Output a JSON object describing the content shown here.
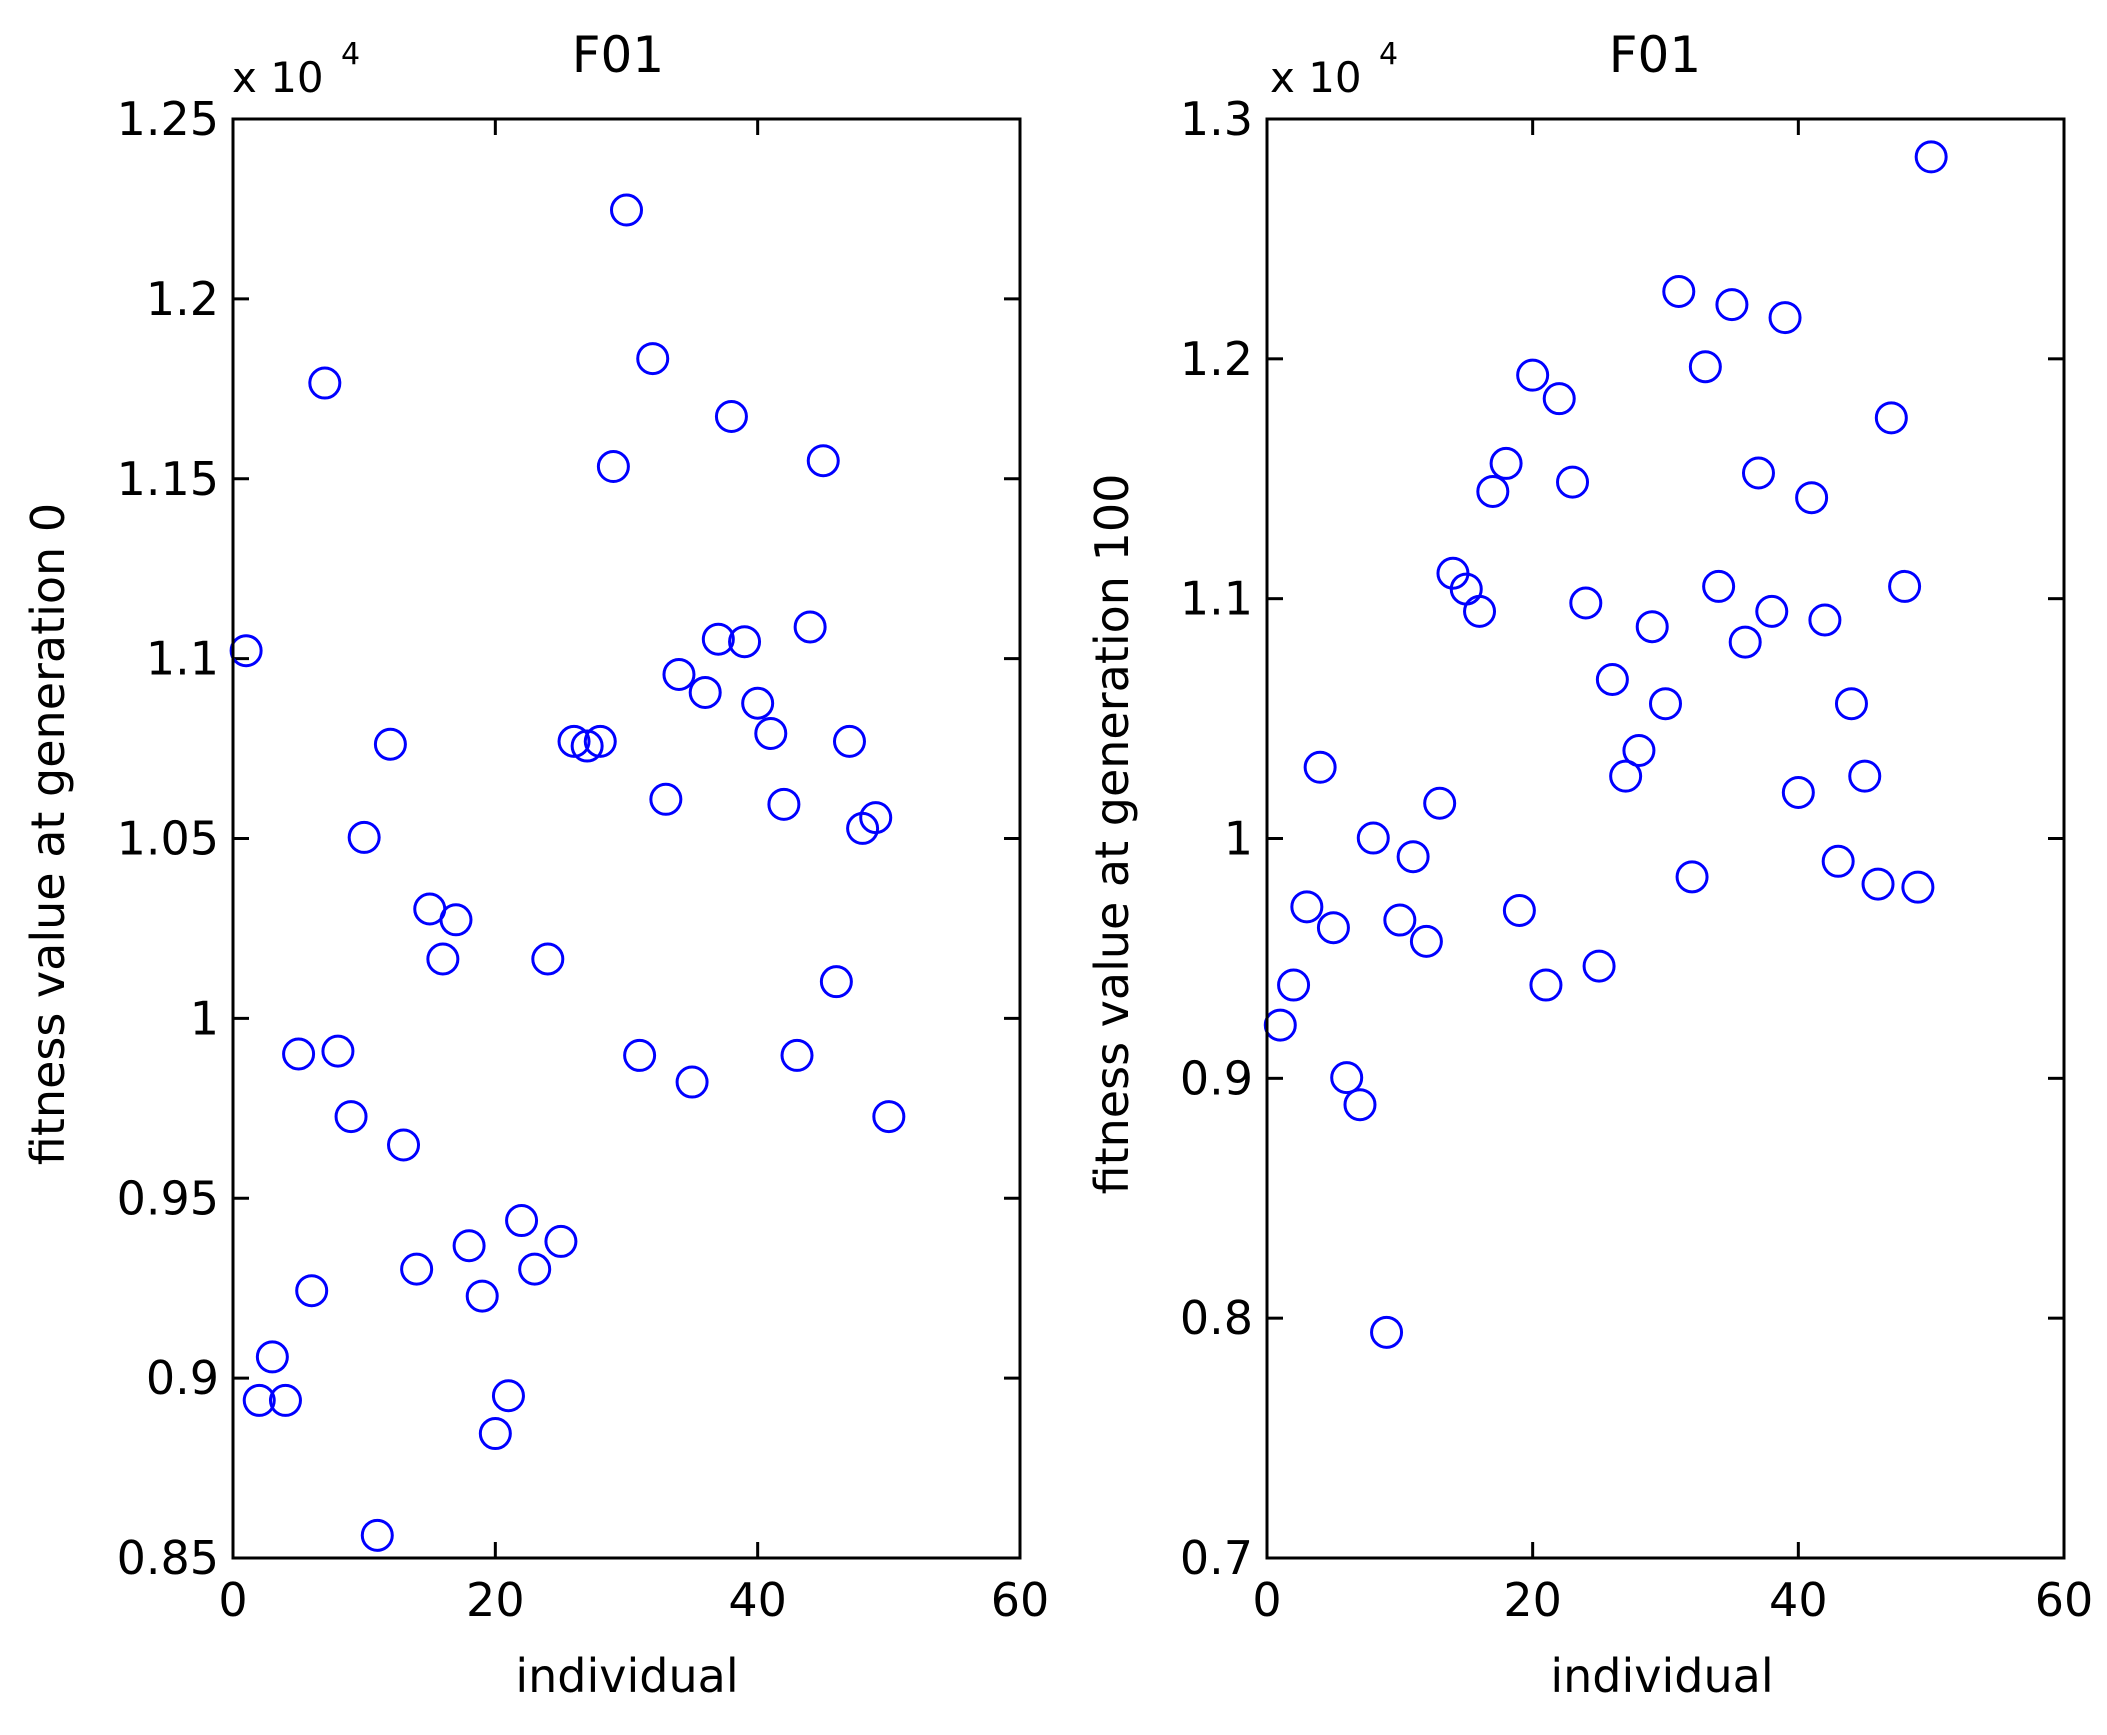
{
  "chart_data": [
    {
      "type": "scatter",
      "title": "F01",
      "xlabel": "individual",
      "ylabel": "fitness value at generation 0",
      "y_multiplier": {
        "base": "x 10",
        "exponent": "4"
      },
      "xlim": [
        0,
        60
      ],
      "ylim": [
        0.85,
        1.25
      ],
      "xticks": [
        0,
        20,
        40,
        60
      ],
      "xtick_labels": [
        "0",
        "20",
        "40",
        "60"
      ],
      "yticks": [
        0.85,
        0.9,
        0.95,
        1.0,
        1.05,
        1.1,
        1.15,
        1.2,
        1.25
      ],
      "ytick_labels": [
        "0.85",
        "0.9",
        "0.95",
        "1",
        "1.05",
        "1.1",
        "1.15",
        "1.2",
        "1.25"
      ],
      "marker": "circle",
      "marker_color": "#0000ff",
      "x": [
        1,
        2,
        3,
        4,
        5,
        6,
        7,
        8,
        9,
        10,
        11,
        12,
        13,
        14,
        15,
        16,
        17,
        18,
        19,
        20,
        21,
        22,
        23,
        24,
        25,
        26,
        27,
        28,
        29,
        30,
        31,
        32,
        33,
        34,
        35,
        36,
        37,
        38,
        39,
        40,
        41,
        42,
        43,
        44,
        45,
        46,
        47,
        48,
        49,
        50
      ],
      "y": [
        1.1022,
        0.8938,
        0.9059,
        0.8938,
        0.9901,
        0.9243,
        1.1766,
        0.9909,
        0.9727,
        1.0503,
        0.8563,
        1.0762,
        0.9648,
        0.9303,
        1.0304,
        1.0165,
        1.0274,
        0.9368,
        0.9228,
        0.8846,
        0.8951,
        0.9438,
        0.9303,
        1.0165,
        0.938,
        1.077,
        1.0757,
        1.077,
        1.1534,
        1.2247,
        0.9897,
        1.1834,
        1.0609,
        1.0956,
        0.9823,
        1.0906,
        1.1054,
        1.1673,
        1.1047,
        1.0876,
        1.0792,
        1.0595,
        0.9897,
        1.1088,
        1.155,
        1.0102,
        1.077,
        1.0528,
        1.0558,
        0.9727
      ]
    },
    {
      "type": "scatter",
      "title": "F01",
      "xlabel": "individual",
      "ylabel": "fitness value at generation 100",
      "y_multiplier": {
        "base": "x 10",
        "exponent": "4"
      },
      "xlim": [
        0,
        60
      ],
      "ylim": [
        0.7,
        1.3
      ],
      "xticks": [
        0,
        20,
        40,
        60
      ],
      "xtick_labels": [
        "0",
        "20",
        "40",
        "60"
      ],
      "yticks": [
        0.7,
        0.8,
        0.9,
        1.0,
        1.1,
        1.2,
        1.3
      ],
      "ytick_labels": [
        "0.7",
        "0.8",
        "0.9",
        "1",
        "1.1",
        "1.2",
        "1.3"
      ],
      "marker": "circle",
      "marker_color": "#0000ff",
      "x": [
        1,
        2,
        3,
        4,
        5,
        6,
        7,
        8,
        9,
        10,
        11,
        12,
        13,
        14,
        15,
        16,
        17,
        18,
        19,
        20,
        21,
        22,
        23,
        24,
        25,
        26,
        27,
        28,
        29,
        30,
        31,
        32,
        33,
        34,
        35,
        36,
        37,
        38,
        39,
        40,
        41,
        42,
        43,
        44,
        45,
        46,
        47,
        48,
        49,
        50
      ],
      "y": [
        0.9222,
        0.9389,
        0.9715,
        1.0297,
        0.9628,
        0.9003,
        0.889,
        1.0002,
        0.7941,
        0.966,
        0.9924,
        0.9571,
        1.0147,
        1.1106,
        1.104,
        1.0947,
        1.1447,
        1.1564,
        0.97,
        1.1932,
        0.9389,
        1.1834,
        1.1486,
        1.0982,
        0.9468,
        1.0663,
        1.026,
        1.0367,
        1.0883,
        1.0562,
        1.2281,
        0.984,
        1.1967,
        1.1051,
        1.2226,
        1.0819,
        1.1524,
        1.0947,
        1.2172,
        1.0192,
        1.1421,
        1.0911,
        0.9905,
        1.0562,
        1.026,
        0.981,
        1.1754,
        1.1051,
        0.9797,
        1.2842
      ]
    }
  ]
}
